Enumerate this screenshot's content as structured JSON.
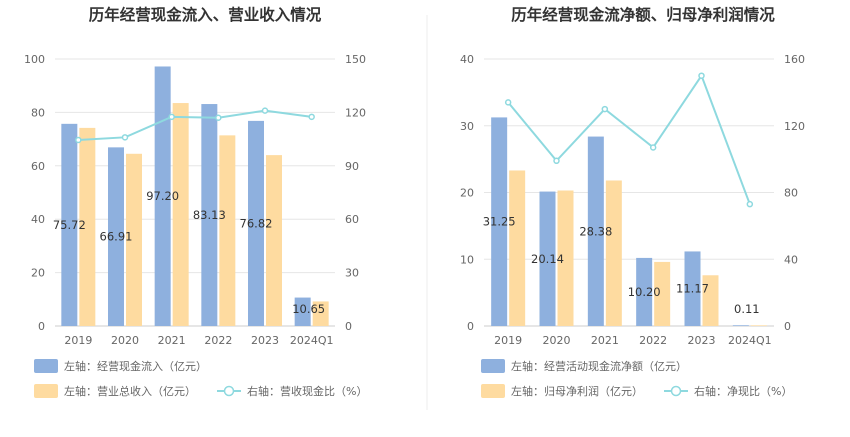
{
  "chart_data": [
    {
      "type": "bar",
      "title": "历年经营现金流入、营业收入情况",
      "categories": [
        "2019",
        "2020",
        "2021",
        "2022",
        "2023",
        "2024Q1"
      ],
      "left_axis": {
        "min": 0,
        "max": 100,
        "ticks": [
          "0",
          "20",
          "40",
          "60",
          "80",
          "100"
        ]
      },
      "right_axis": {
        "min": 0,
        "max": 150,
        "ticks": [
          "0",
          "30",
          "60",
          "90",
          "120",
          "150"
        ]
      },
      "series": [
        {
          "name": "左轴：经营现金流入（亿元）",
          "axis": "left",
          "kind": "bar",
          "color": "#8eb0de",
          "values": [
            75.72,
            66.91,
            97.2,
            83.13,
            76.82,
            10.65
          ],
          "labels": [
            "75.72",
            "66.91",
            "97.20",
            "83.13",
            "76.82",
            "10.65"
          ]
        },
        {
          "name": "左轴：营业总收入（亿元）",
          "axis": "left",
          "kind": "bar",
          "color": "#fedba0",
          "values": [
            74.2,
            64.5,
            83.5,
            71.4,
            64.0,
            9.2
          ]
        },
        {
          "name": "右轴：营收现金比（%）",
          "axis": "right",
          "kind": "line",
          "color": "#8ed9df",
          "values": [
            104.5,
            106.0,
            117.5,
            117.0,
            121.0,
            117.5
          ]
        }
      ]
    },
    {
      "type": "bar",
      "title": "历年经营现金流净额、归母净利润情况",
      "categories": [
        "2019",
        "2020",
        "2021",
        "2022",
        "2023",
        "2024Q1"
      ],
      "left_axis": {
        "min": 0,
        "max": 40,
        "ticks": [
          "0",
          "10",
          "20",
          "30",
          "40"
        ]
      },
      "right_axis": {
        "min": 0,
        "max": 160,
        "ticks": [
          "0",
          "40",
          "80",
          "120",
          "160"
        ]
      },
      "series": [
        {
          "name": "左轴：经营活动现金流净额（亿元）",
          "axis": "left",
          "kind": "bar",
          "color": "#8eb0de",
          "values": [
            31.25,
            20.14,
            28.38,
            10.2,
            11.17,
            0.11
          ],
          "labels": [
            "31.25",
            "20.14",
            "28.38",
            "10.20",
            "11.17",
            "0.11"
          ]
        },
        {
          "name": "左轴：归母净利润（亿元）",
          "axis": "left",
          "kind": "bar",
          "color": "#fedba0",
          "values": [
            23.3,
            20.3,
            21.8,
            9.6,
            7.6,
            0.1
          ]
        },
        {
          "name": "右轴：净现比（%）",
          "axis": "right",
          "kind": "line",
          "color": "#8ed9df",
          "values": [
            134,
            99,
            130,
            107,
            150,
            73
          ]
        }
      ]
    }
  ]
}
